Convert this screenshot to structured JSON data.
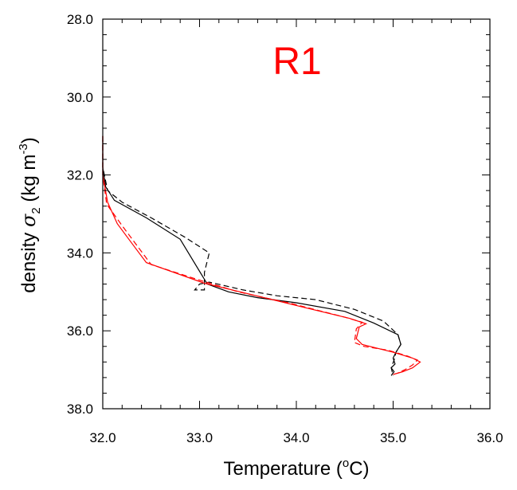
{
  "chart_data": {
    "type": "line",
    "title": "R1",
    "title_color": "#ff0000",
    "xlabel": "Temperature (",
    "xlabel_sup": "o",
    "xlabel_end": "C)",
    "ylabel_prefix": "density ",
    "ylabel_symbol": "σ",
    "ylabel_subscript": "2",
    "ylabel_units": " (kg m",
    "ylabel_units_sup": "-3",
    "ylabel_units_end": ")",
    "xlim": [
      32.0,
      36.0
    ],
    "ylim": [
      28.0,
      38.0
    ],
    "y_inverted": true,
    "grid": false,
    "xticks": [
      32.0,
      33.0,
      34.0,
      35.0,
      36.0
    ],
    "xtick_labels": [
      "32.0",
      "33.0",
      "34.0",
      "35.0",
      "36.0"
    ],
    "yticks": [
      28.0,
      30.0,
      32.0,
      34.0,
      36.0,
      38.0
    ],
    "ytick_labels": [
      "28.0",
      "30.0",
      "32.0",
      "34.0",
      "36.0",
      "38.0"
    ],
    "series": [
      {
        "color": "#000000",
        "dash": "solid",
        "points": [
          [
            32.0,
            31.1
          ],
          [
            32.0,
            31.8
          ],
          [
            32.03,
            32.3
          ],
          [
            32.12,
            32.65
          ],
          [
            32.45,
            33.1
          ],
          [
            32.8,
            33.65
          ],
          [
            33.08,
            34.8
          ],
          [
            33.3,
            35.0
          ],
          [
            33.6,
            35.15
          ],
          [
            34.0,
            35.28
          ],
          [
            34.5,
            35.5
          ],
          [
            34.8,
            35.8
          ],
          [
            35.05,
            36.1
          ],
          [
            35.08,
            36.35
          ],
          [
            35.03,
            36.55
          ],
          [
            35.0,
            36.7
          ],
          [
            35.02,
            36.85
          ],
          [
            34.98,
            36.95
          ],
          [
            35.01,
            37.05
          ],
          [
            34.98,
            37.15
          ]
        ]
      },
      {
        "color": "#000000",
        "dash": "dashed",
        "points": [
          [
            32.0,
            31.0
          ],
          [
            32.0,
            31.8
          ],
          [
            32.05,
            32.4
          ],
          [
            32.2,
            32.7
          ],
          [
            32.5,
            33.1
          ],
          [
            32.85,
            33.6
          ],
          [
            33.1,
            34.0
          ],
          [
            33.05,
            34.5
          ],
          [
            33.05,
            34.95
          ],
          [
            32.95,
            34.95
          ],
          [
            33.0,
            34.8
          ],
          [
            33.1,
            34.75
          ],
          [
            33.45,
            34.95
          ],
          [
            33.8,
            35.1
          ],
          [
            34.2,
            35.2
          ],
          [
            34.6,
            35.45
          ],
          [
            34.9,
            35.75
          ],
          [
            35.05,
            36.1
          ],
          [
            35.08,
            36.35
          ],
          [
            35.03,
            36.55
          ],
          [
            35.01,
            36.75
          ],
          [
            34.98,
            36.95
          ],
          [
            35.0,
            37.15
          ]
        ]
      },
      {
        "color": "#ff0000",
        "dash": "solid",
        "points": [
          [
            32.0,
            31.0
          ],
          [
            32.0,
            32.0
          ],
          [
            32.05,
            32.7
          ],
          [
            32.15,
            33.25
          ],
          [
            32.3,
            33.75
          ],
          [
            32.45,
            34.25
          ],
          [
            33.05,
            34.78
          ],
          [
            33.5,
            35.05
          ],
          [
            34.0,
            35.35
          ],
          [
            34.55,
            35.68
          ],
          [
            34.72,
            35.82
          ],
          [
            34.65,
            35.9
          ],
          [
            34.62,
            36.2
          ],
          [
            34.68,
            36.35
          ],
          [
            35.0,
            36.55
          ],
          [
            35.2,
            36.7
          ],
          [
            35.28,
            36.8
          ],
          [
            35.2,
            36.95
          ],
          [
            35.1,
            37.05
          ],
          [
            35.0,
            37.12
          ]
        ]
      },
      {
        "color": "#ff0000",
        "dash": "dashed",
        "points": [
          [
            32.0,
            31.0
          ],
          [
            32.0,
            32.0
          ],
          [
            32.04,
            32.75
          ],
          [
            32.2,
            33.3
          ],
          [
            32.35,
            33.8
          ],
          [
            32.5,
            34.3
          ],
          [
            33.0,
            34.7
          ],
          [
            33.4,
            35.0
          ],
          [
            33.95,
            35.3
          ],
          [
            34.5,
            35.65
          ],
          [
            34.68,
            35.78
          ],
          [
            34.62,
            35.95
          ],
          [
            34.6,
            36.3
          ],
          [
            34.7,
            36.4
          ],
          [
            34.95,
            36.5
          ],
          [
            35.15,
            36.65
          ],
          [
            35.25,
            36.75
          ],
          [
            35.2,
            36.88
          ],
          [
            35.12,
            37.0
          ],
          [
            35.05,
            37.08
          ]
        ]
      }
    ]
  }
}
